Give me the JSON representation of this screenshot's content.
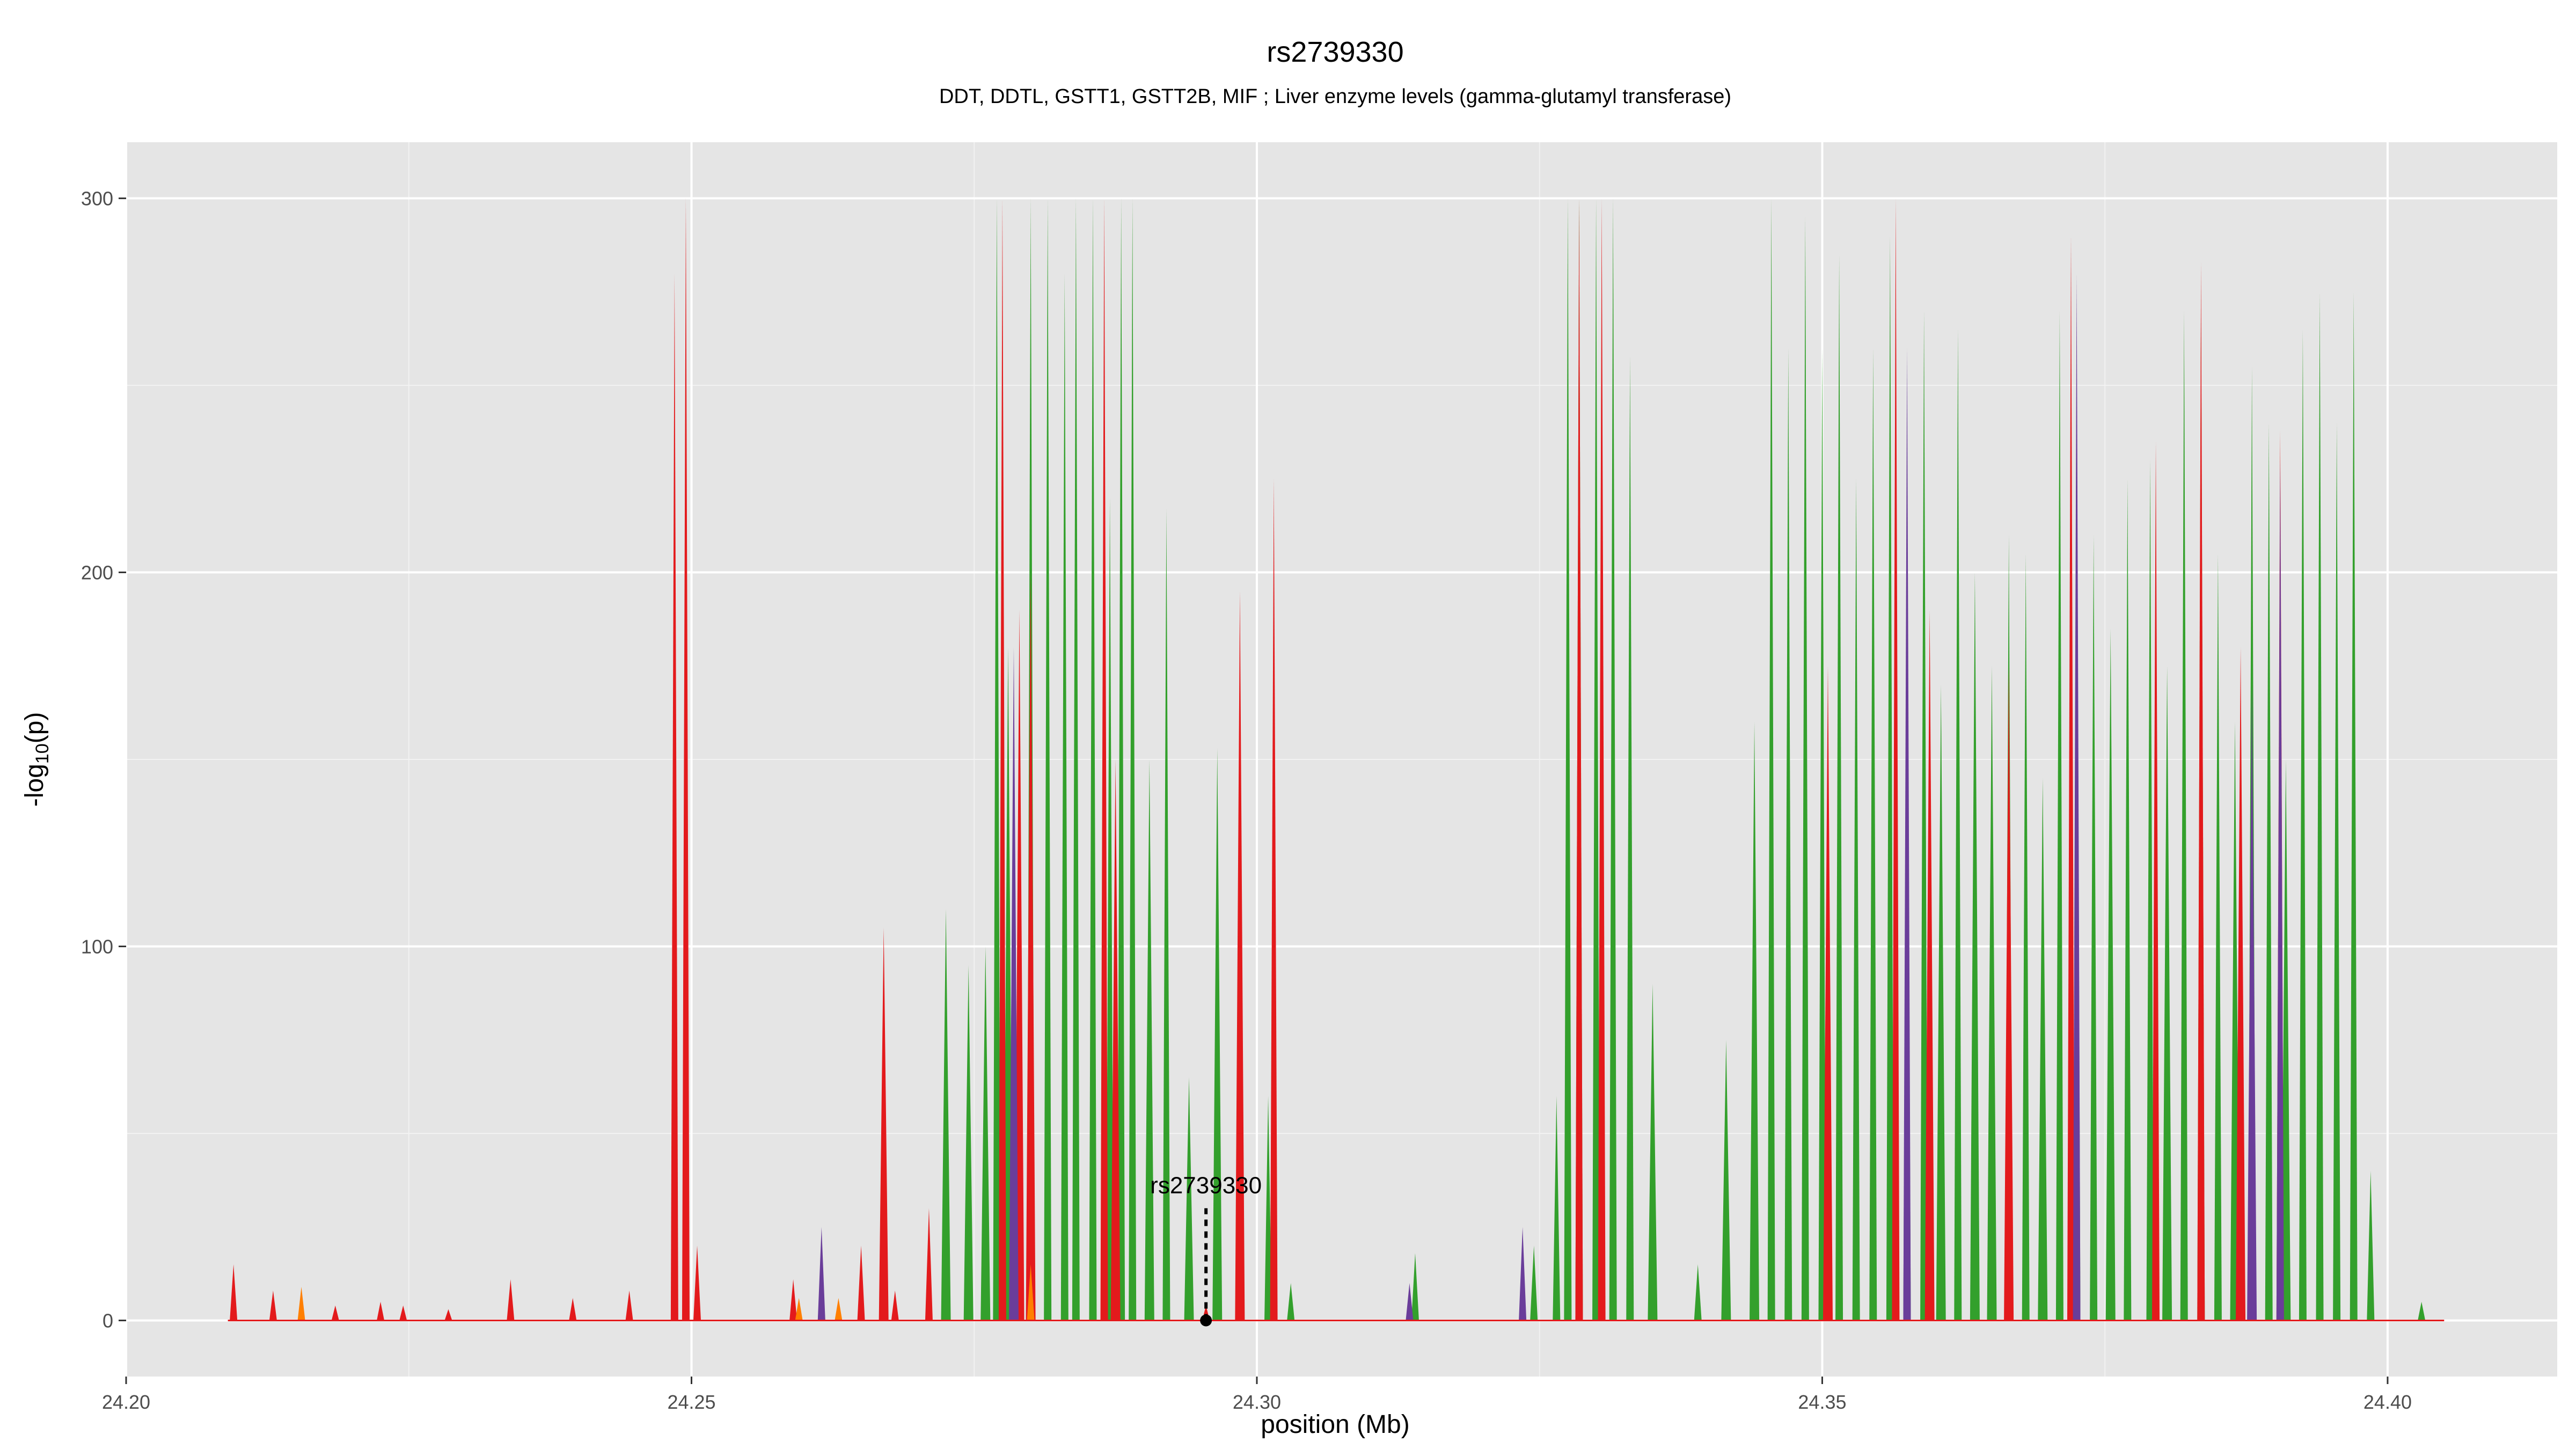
{
  "chart_data": {
    "type": "area",
    "title": "rs2739330",
    "subtitle": "DDT, DDTL, GSTT1, GSTT2B, MIF ; Liver enzyme levels (gamma-glutamyl transferase)",
    "xlabel": "position (Mb)",
    "ylabel_main": "-log",
    "ylabel_sub": "10",
    "ylabel_tail": "(p)",
    "xlim": [
      24.2,
      24.415
    ],
    "ylim": [
      -15,
      315
    ],
    "x_ticks": [
      24.2,
      24.25,
      24.3,
      24.35,
      24.4
    ],
    "x_tick_labels": [
      "24.20",
      "24.25",
      "24.30",
      "24.35",
      "24.40"
    ],
    "y_ticks": [
      0,
      100,
      200,
      300
    ],
    "y_tick_labels": [
      "0",
      "100",
      "200",
      "300"
    ],
    "grid": true,
    "background": "#e5e5e5",
    "colors": {
      "green": "#33a02c",
      "red": "#e31a1c",
      "purple": "#6a3d9a",
      "orange": "#ff7f00",
      "blue": "#1f78b4"
    },
    "annotation": {
      "label": "rs2739330",
      "x": 24.2955,
      "y": 0
    },
    "series": [
      {
        "color": "green",
        "peaks": [
          [
            24.2725,
            110
          ],
          [
            24.2745,
            95
          ],
          [
            24.276,
            100
          ],
          [
            24.277,
            300
          ],
          [
            24.278,
            180
          ],
          [
            24.28,
            300
          ],
          [
            24.2815,
            300
          ],
          [
            24.283,
            280
          ],
          [
            24.284,
            300
          ],
          [
            24.2855,
            300
          ],
          [
            24.287,
            220
          ],
          [
            24.288,
            300
          ],
          [
            24.289,
            300
          ],
          [
            24.2905,
            150
          ],
          [
            24.292,
            217
          ],
          [
            24.294,
            65
          ],
          [
            24.2965,
            153
          ],
          [
            24.2985,
            30
          ],
          [
            24.301,
            60
          ],
          [
            24.303,
            10
          ],
          [
            24.314,
            18
          ],
          [
            24.3245,
            20
          ],
          [
            24.3265,
            60
          ],
          [
            24.3275,
            300
          ],
          [
            24.3285,
            300
          ],
          [
            24.33,
            300
          ],
          [
            24.3315,
            300
          ],
          [
            24.333,
            258
          ],
          [
            24.335,
            90
          ],
          [
            24.339,
            15
          ],
          [
            24.3415,
            75
          ],
          [
            24.344,
            160
          ],
          [
            24.3455,
            300
          ],
          [
            24.347,
            260
          ],
          [
            24.3485,
            295
          ],
          [
            24.35,
            260
          ],
          [
            24.3515,
            285
          ],
          [
            24.353,
            225
          ],
          [
            24.3545,
            260
          ],
          [
            24.356,
            290
          ],
          [
            24.3575,
            210
          ],
          [
            24.359,
            270
          ],
          [
            24.3605,
            170
          ],
          [
            24.362,
            265
          ],
          [
            24.3635,
            200
          ],
          [
            24.365,
            175
          ],
          [
            24.3665,
            210
          ],
          [
            24.368,
            205
          ],
          [
            24.3695,
            145
          ],
          [
            24.371,
            270
          ],
          [
            24.3725,
            255
          ],
          [
            24.374,
            210
          ],
          [
            24.3755,
            185
          ],
          [
            24.377,
            225
          ],
          [
            24.379,
            230
          ],
          [
            24.3805,
            175
          ],
          [
            24.382,
            270
          ],
          [
            24.3835,
            275
          ],
          [
            24.385,
            205
          ],
          [
            24.3865,
            160
          ],
          [
            24.388,
            255
          ],
          [
            24.3895,
            240
          ],
          [
            24.391,
            150
          ],
          [
            24.3925,
            265
          ],
          [
            24.394,
            275
          ],
          [
            24.3955,
            240
          ],
          [
            24.397,
            275
          ],
          [
            24.3985,
            40
          ],
          [
            24.403,
            5
          ]
        ]
      },
      {
        "color": "red",
        "peaks": [
          [
            24.2095,
            15
          ],
          [
            24.213,
            8
          ],
          [
            24.2185,
            4
          ],
          [
            24.2225,
            5
          ],
          [
            24.2245,
            4
          ],
          [
            24.2285,
            3
          ],
          [
            24.234,
            11
          ],
          [
            24.2395,
            6
          ],
          [
            24.2445,
            8
          ],
          [
            24.2485,
            280
          ],
          [
            24.2495,
            300
          ],
          [
            24.2505,
            20
          ],
          [
            24.259,
            11
          ],
          [
            24.2615,
            15
          ],
          [
            24.265,
            20
          ],
          [
            24.267,
            105
          ],
          [
            24.268,
            8
          ],
          [
            24.271,
            30
          ],
          [
            24.2775,
            300
          ],
          [
            24.279,
            190
          ],
          [
            24.28,
            200
          ],
          [
            24.2865,
            300
          ],
          [
            24.2875,
            150
          ],
          [
            24.2955,
            4
          ],
          [
            24.2985,
            195
          ],
          [
            24.3015,
            225
          ],
          [
            24.3285,
            300
          ],
          [
            24.3305,
            300
          ],
          [
            24.3505,
            175
          ],
          [
            24.3565,
            300
          ],
          [
            24.3595,
            190
          ],
          [
            24.3665,
            175
          ],
          [
            24.372,
            290
          ],
          [
            24.3795,
            235
          ],
          [
            24.3835,
            283
          ],
          [
            24.387,
            180
          ],
          [
            24.3905,
            238
          ]
        ]
      },
      {
        "color": "purple",
        "peaks": [
          [
            24.2615,
            25
          ],
          [
            24.2785,
            180
          ],
          [
            24.3135,
            10
          ],
          [
            24.3235,
            25
          ],
          [
            24.3575,
            260
          ],
          [
            24.3725,
            280
          ],
          [
            24.388,
            170
          ],
          [
            24.3905,
            230
          ]
        ]
      },
      {
        "color": "orange",
        "peaks": [
          [
            24.2155,
            9
          ],
          [
            24.2595,
            6
          ],
          [
            24.263,
            6
          ],
          [
            24.28,
            15
          ]
        ]
      }
    ]
  }
}
